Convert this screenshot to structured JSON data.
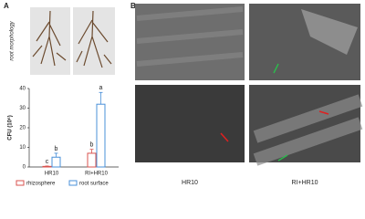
{
  "panels": {
    "a": "A",
    "b": "B"
  },
  "photo_label": "root morphology",
  "sem_labels": [
    "HR10",
    "RI+HR10"
  ],
  "chart_data": {
    "type": "bar",
    "y_label": "CFU (10⁶)",
    "categories": [
      "HR10",
      "RI+HR10"
    ],
    "series": [
      {
        "name": "rhizosphere",
        "color": "#d9534f",
        "values": [
          0.3,
          7
        ],
        "errors": [
          0.2,
          2
        ],
        "letters": [
          "c",
          "b"
        ]
      },
      {
        "name": "root surface",
        "color": "#4a90d9",
        "values": [
          5,
          32
        ],
        "errors": [
          2,
          6
        ],
        "letters": [
          "b",
          "a"
        ]
      }
    ],
    "ylim": [
      0,
      40
    ],
    "yticks": [
      0,
      10,
      20,
      30,
      40
    ]
  }
}
